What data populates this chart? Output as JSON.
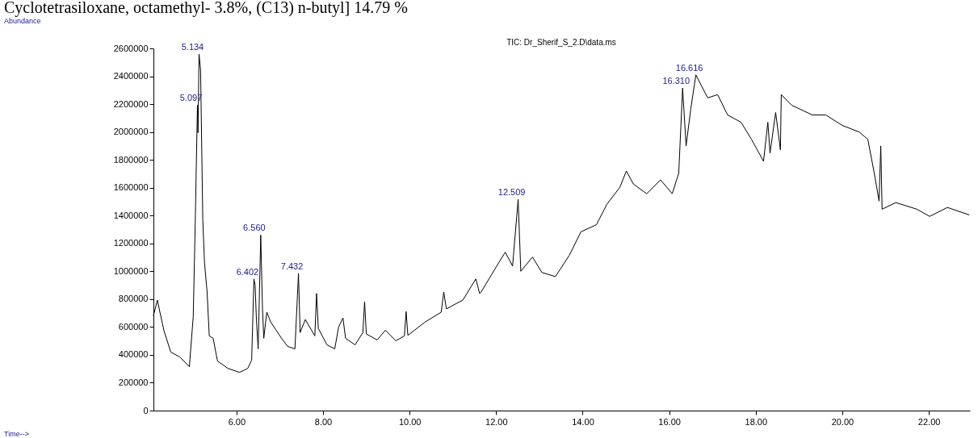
{
  "chart_data": {
    "type": "line",
    "title": "TIC: Dr_Sherif_S_2.D\\data.ms",
    "annotations": [
      "Cyclotetrasiloxane, octamethyl- 3.8%, (C13) n-butyl] 14.79 %",
      "Abundance",
      "Time-->",
      {
        "text": "5.134",
        "x": 5.134,
        "y": 2560000
      },
      {
        "text": "5.097",
        "x": 5.097,
        "y": 2192000
      },
      {
        "text": "6.402",
        "x": 6.402,
        "y": 945000
      },
      {
        "text": "6.560",
        "x": 6.56,
        "y": 1260000
      },
      {
        "text": "7.432",
        "x": 7.432,
        "y": 985000
      },
      {
        "text": "12.509",
        "x": 12.509,
        "y": 1516000
      },
      {
        "text": "16.310",
        "x": 16.31,
        "y": 2315000
      },
      {
        "text": "16.616",
        "x": 16.616,
        "y": 2410000
      }
    ],
    "x": [
      4.08,
      4.17,
      4.32,
      4.48,
      4.69,
      4.91,
      5.0,
      5.05,
      5.097,
      5.11,
      5.134,
      5.17,
      5.22,
      5.26,
      5.32,
      5.37,
      5.46,
      5.56,
      5.8,
      6.07,
      6.26,
      6.35,
      6.402,
      6.43,
      6.46,
      6.5,
      6.56,
      6.6,
      6.63,
      6.7,
      6.79,
      7.04,
      7.18,
      7.35,
      7.432,
      7.47,
      7.59,
      7.81,
      7.85,
      7.89,
      8.09,
      8.27,
      8.36,
      8.46,
      8.52,
      8.74,
      8.92,
      8.96,
      9.0,
      9.25,
      9.44,
      9.68,
      9.88,
      9.92,
      9.96,
      10.36,
      10.73,
      10.79,
      10.85,
      11.23,
      11.53,
      11.62,
      11.65,
      11.97,
      12.21,
      12.38,
      12.509,
      12.57,
      12.84,
      13.06,
      13.37,
      13.69,
      13.96,
      14.32,
      14.56,
      14.86,
      15.01,
      15.17,
      15.48,
      15.8,
      16.07,
      16.22,
      16.31,
      16.39,
      16.5,
      16.616,
      16.89,
      17.12,
      17.35,
      17.66,
      17.9,
      18.18,
      18.28,
      18.33,
      18.46,
      18.57,
      18.59,
      18.83,
      19.31,
      19.62,
      20.0,
      20.39,
      20.59,
      20.74,
      20.85,
      20.89,
      20.92,
      21.24,
      21.72,
      22.02,
      22.43,
      22.93
    ],
    "series": [
      {
        "color": "#000000",
        "values": [
          680000,
          793000,
          577000,
          420000,
          385000,
          315000,
          676000,
          1411000,
          2192000,
          1994000,
          2560000,
          2443000,
          1376000,
          1061000,
          851000,
          536000,
          519000,
          356000,
          303000,
          274000,
          303000,
          362000,
          945000,
          900000,
          653000,
          443000,
          1260000,
          735000,
          519000,
          706000,
          636000,
          519000,
          461000,
          443000,
          985000,
          560000,
          653000,
          536000,
          840000,
          590000,
          472000,
          443000,
          600000,
          665000,
          519000,
          472000,
          560000,
          781000,
          550000,
          507000,
          577000,
          501000,
          536000,
          711000,
          540000,
          636000,
          706000,
          851000,
          730000,
          793000,
          945000,
          840000,
          850000,
          1015000,
          1137000,
          1038000,
          1516000,
          1000000,
          1102000,
          991000,
          962000,
          1114000,
          1283000,
          1335000,
          1481000,
          1603000,
          1720000,
          1627000,
          1557000,
          1656000,
          1557000,
          1703000,
          2315000,
          1900000,
          2169000,
          2410000,
          2245000,
          2268000,
          2122000,
          2070000,
          1948000,
          1790000,
          2070000,
          1848000,
          2140000,
          1872000,
          2268000,
          2192000,
          2122000,
          2122000,
          2047000,
          2000000,
          1948000,
          1703000,
          1504000,
          1900000,
          1446000,
          1493000,
          1446000,
          1394000,
          1458000,
          1405000
        ]
      }
    ],
    "xlim": [
      4.08,
      22.95
    ],
    "xticks": [
      {
        "value": 6,
        "label": "6.00"
      },
      {
        "value": 8,
        "label": "8.00"
      },
      {
        "value": 10,
        "label": "10.00"
      },
      {
        "value": 12,
        "label": "12.00"
      },
      {
        "value": 14,
        "label": "14.00"
      },
      {
        "value": 16,
        "label": "16.00"
      },
      {
        "value": 18,
        "label": "18.00"
      },
      {
        "value": 20,
        "label": "20.00"
      },
      {
        "value": 22,
        "label": "22.00"
      }
    ],
    "ylim": [
      0,
      2600000
    ],
    "yticks": [
      0,
      200000,
      400000,
      600000,
      800000,
      1000000,
      1200000,
      1400000,
      1600000,
      1800000,
      2000000,
      2200000,
      2400000,
      2600000
    ],
    "grid": false,
    "marker": "none",
    "line_style": "solid"
  }
}
